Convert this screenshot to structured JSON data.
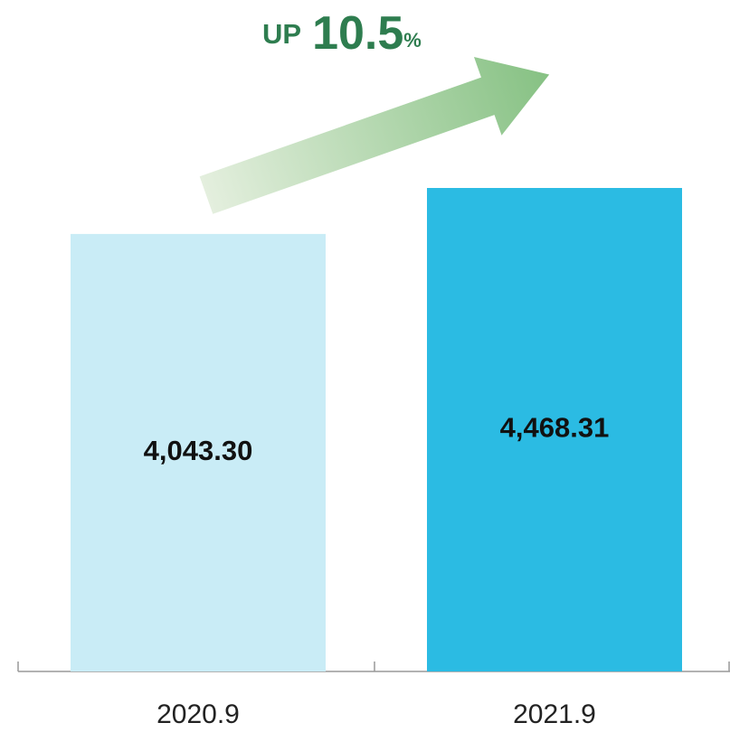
{
  "chart_data": {
    "type": "bar",
    "annotation": {
      "prefix": "UP",
      "number": "10.5",
      "unit": "%"
    },
    "categories": [
      "2020.9",
      "2021.9"
    ],
    "values": [
      4043.3,
      4468.31
    ],
    "value_labels": [
      "4,043.30",
      "4,468.31"
    ],
    "colors": [
      "#c9ecf6",
      "#2bbbe3"
    ]
  }
}
